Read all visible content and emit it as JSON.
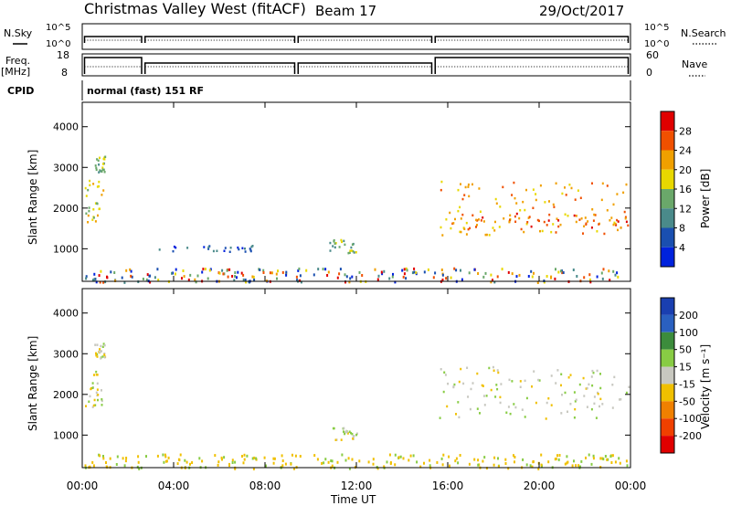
{
  "header": {
    "radar": "Christmas Valley West (fitACF)",
    "beam": "Beam 17",
    "date": "29/Oct/2017",
    "mode": "normal (fast) 151 RF"
  },
  "panel_labels": {
    "nsky": "N.Sky",
    "nsearch": "N.Search",
    "freq": "Freq.",
    "freq_unit": "[MHz]",
    "nave": "Nave",
    "cpid": "CPID"
  },
  "chart_data": [
    {
      "type": "line",
      "name_panel": "noise",
      "y_ticks_left": [
        "10^5",
        "10^0"
      ],
      "y_ticks_right": [
        "10^5",
        "10^0"
      ],
      "segments_hours": [
        [
          0.1,
          2.6
        ],
        [
          2.75,
          9.3
        ],
        [
          9.45,
          15.3
        ],
        [
          15.45,
          23.9
        ]
      ]
    },
    {
      "type": "line",
      "name_panel": "frequency",
      "y_ticks_left": [
        "18",
        "8"
      ],
      "y_ticks_right": [
        "60",
        "0"
      ],
      "segments_hours": [
        [
          0.1,
          2.6
        ],
        [
          2.75,
          9.3
        ],
        [
          9.45,
          15.3
        ],
        [
          15.45,
          23.9
        ]
      ]
    },
    {
      "type": "heatmap",
      "name_panel": "power",
      "ylabel": "Slant Range [km]",
      "y_ticks": [
        "1000",
        "2000",
        "3000",
        "4000"
      ],
      "ylim": [
        200,
        4600
      ],
      "colorbar_label": "Power [dB]",
      "colorbar_ticks": [
        "4",
        "8",
        "12",
        "16",
        "20",
        "24",
        "28"
      ],
      "colors": [
        "#0022dd",
        "#1a4fb0",
        "#4a8a8a",
        "#6aa86a",
        "#e8d800",
        "#f0a000",
        "#f05000",
        "#e00000"
      ],
      "regions": [
        {
          "t0": 0.1,
          "t1": 0.9,
          "r0": 1600,
          "r1": 2700,
          "level": 4
        },
        {
          "t0": 0.5,
          "t1": 1.0,
          "r0": 2900,
          "r1": 3300,
          "level": 3
        },
        {
          "t0": 3.2,
          "t1": 7.5,
          "r0": 950,
          "r1": 1100,
          "level": 1
        },
        {
          "t0": 10.8,
          "t1": 12.0,
          "r0": 900,
          "r1": 1250,
          "level": 3
        },
        {
          "t0": 15.6,
          "t1": 23.9,
          "r0": 1350,
          "r1": 2700,
          "level": 5
        },
        {
          "t0": 16.5,
          "t1": 23.9,
          "r0": 1500,
          "r1": 1900,
          "level": 6
        }
      ]
    },
    {
      "type": "heatmap",
      "name_panel": "velocity",
      "ylabel": "Slant Range [km]",
      "xlabel": "Time UT",
      "x_ticks": [
        "00:00",
        "04:00",
        "08:00",
        "12:00",
        "16:00",
        "20:00",
        "00:00"
      ],
      "xlim_hours": [
        0,
        24
      ],
      "y_ticks": [
        "1000",
        "2000",
        "3000",
        "4000"
      ],
      "ylim": [
        200,
        4600
      ],
      "colorbar_label": "Velocity [m s⁻¹]",
      "colorbar_ticks": [
        "200",
        "100",
        "50",
        "15",
        "-15",
        "-50",
        "-100",
        "-200"
      ],
      "colors": [
        "#1a3fb0",
        "#2a60c0",
        "#3c8c3c",
        "#88cc44",
        "#c8c8c0",
        "#f0c000",
        "#f08000",
        "#f04000",
        "#e00000"
      ],
      "regions": [
        {
          "t0": 0.1,
          "t1": 0.9,
          "r0": 1700,
          "r1": 2600,
          "level": 4
        },
        {
          "t0": 0.5,
          "t1": 1.0,
          "r0": 2900,
          "r1": 3300,
          "level": 4
        },
        {
          "t0": 10.8,
          "t1": 12.0,
          "r0": 900,
          "r1": 1250,
          "level": 4
        },
        {
          "t0": 15.6,
          "t1": 23.9,
          "r0": 1400,
          "r1": 2700,
          "level": 4
        }
      ]
    }
  ]
}
